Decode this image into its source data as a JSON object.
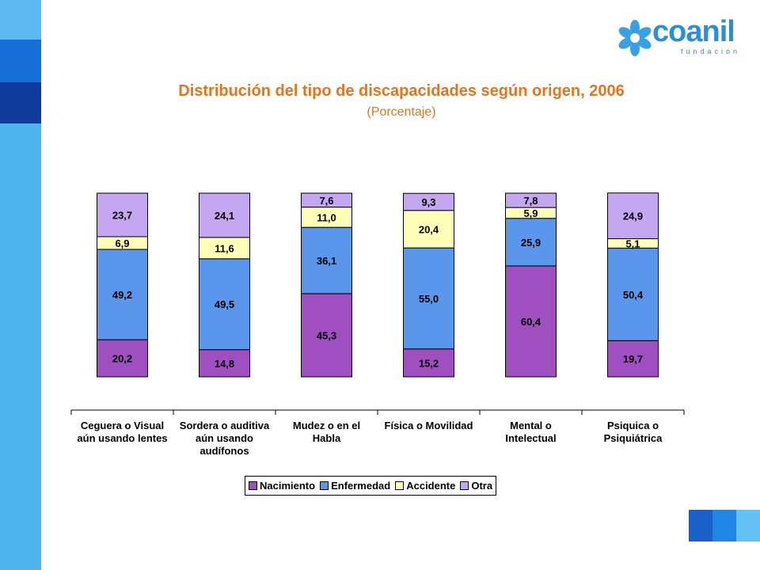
{
  "logo": {
    "text": "coanil",
    "subtext": "fundación"
  },
  "title": "Distribución del tipo de discapacidades según origen, 2006",
  "subtitle": "(Porcentaje)",
  "colors": {
    "Nacimiento": "#a04fc0",
    "Enfermedad": "#5a96ec",
    "Accidente": "#ffffb8",
    "Otra": "#c5a6f0",
    "title": "#e8731a",
    "brand": "#2a8fd8"
  },
  "chart_data": {
    "type": "bar",
    "stacked": true,
    "title": "Distribución del tipo de discapacidades según origen, 2006",
    "subtitle": "(Porcentaje)",
    "categories": [
      [
        "Ceguera o Visual",
        "aún usando lentes"
      ],
      [
        "Sordera o auditiva",
        "aún usando",
        "audífonos"
      ],
      [
        "Mudez o en el",
        "Habla"
      ],
      [
        "Física o Movilidad"
      ],
      [
        "Mental o",
        "Intelectual"
      ],
      [
        "Psiquica o",
        "Psiquiátrica"
      ]
    ],
    "series": [
      {
        "name": "Nacimiento",
        "values": [
          20.2,
          14.8,
          45.3,
          15.2,
          60.4,
          19.7
        ],
        "labels": [
          "20,2",
          "14,8",
          "45,3",
          "15,2",
          "60,4",
          "19,7"
        ]
      },
      {
        "name": "Enfermedad",
        "values": [
          49.2,
          49.5,
          36.1,
          55.0,
          25.9,
          50.4
        ],
        "labels": [
          "49,2",
          "49,5",
          "36,1",
          "55,0",
          "25,9",
          "50,4"
        ]
      },
      {
        "name": "Accidente",
        "values": [
          6.9,
          11.6,
          11.0,
          20.4,
          5.9,
          5.1
        ],
        "labels": [
          "6,9",
          "11,6",
          "11,0",
          "20,4",
          "5,9",
          "5,1"
        ]
      },
      {
        "name": "Otra",
        "values": [
          23.7,
          24.1,
          7.6,
          9.3,
          7.8,
          24.9
        ],
        "labels": [
          "23,7",
          "24,1",
          "7,6",
          "9,3",
          "7,8",
          "24,9"
        ]
      }
    ],
    "ylim": [
      0,
      100
    ],
    "legend": "bottom"
  }
}
